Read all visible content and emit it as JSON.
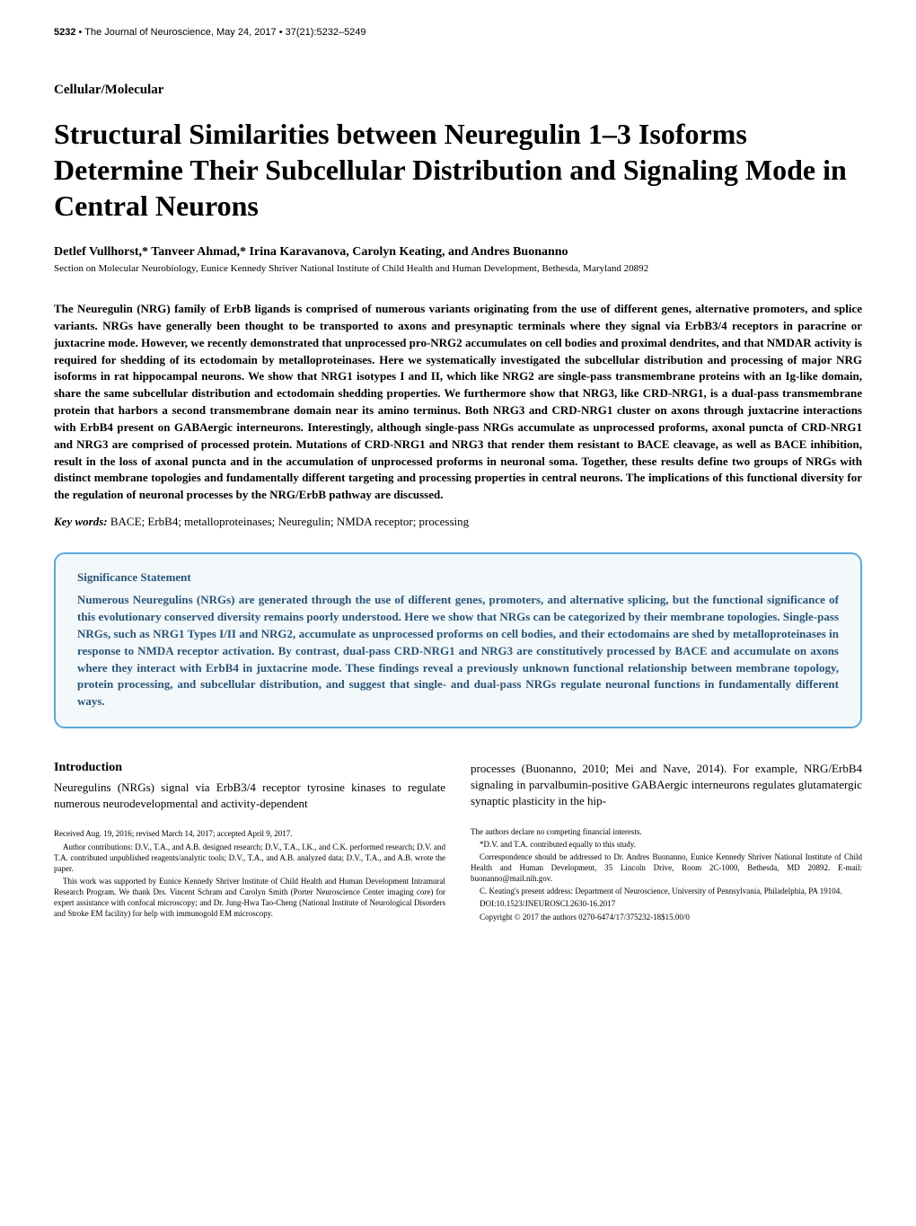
{
  "header": {
    "page_number": "5232",
    "journal_info": "The Journal of Neuroscience, May 24, 2017 • 37(21):5232–5249"
  },
  "section_label": "Cellular/Molecular",
  "title": "Structural Similarities between Neuregulin 1–3 Isoforms Determine Their Subcellular Distribution and Signaling Mode in Central Neurons",
  "authors": "Detlef Vullhorst,* Tanveer Ahmad,* Irina Karavanova, Carolyn Keating, and Andres Buonanno",
  "affiliation": "Section on Molecular Neurobiology, Eunice Kennedy Shriver National Institute of Child Health and Human Development, Bethesda, Maryland 20892",
  "abstract": "The Neuregulin (NRG) family of ErbB ligands is comprised of numerous variants originating from the use of different genes, alternative promoters, and splice variants. NRGs have generally been thought to be transported to axons and presynaptic terminals where they signal via ErbB3/4 receptors in paracrine or juxtacrine mode. However, we recently demonstrated that unprocessed pro-NRG2 accumulates on cell bodies and proximal dendrites, and that NMDAR activity is required for shedding of its ectodomain by metalloproteinases. Here we systematically investigated the subcellular distribution and processing of major NRG isoforms in rat hippocampal neurons. We show that NRG1 isotypes I and II, which like NRG2 are single-pass transmembrane proteins with an Ig-like domain, share the same subcellular distribution and ectodomain shedding properties. We furthermore show that NRG3, like CRD-NRG1, is a dual-pass transmembrane protein that harbors a second transmembrane domain near its amino terminus. Both NRG3 and CRD-NRG1 cluster on axons through juxtacrine interactions with ErbB4 present on GABAergic interneurons. Interestingly, although single-pass NRGs accumulate as unprocessed proforms, axonal puncta of CRD-NRG1 and NRG3 are comprised of processed protein. Mutations of CRD-NRG1 and NRG3 that render them resistant to BACE cleavage, as well as BACE inhibition, result in the loss of axonal puncta and in the accumulation of unprocessed proforms in neuronal soma. Together, these results define two groups of NRGs with distinct membrane topologies and fundamentally different targeting and processing properties in central neurons. The implications of this functional diversity for the regulation of neuronal processes by the NRG/ErbB pathway are discussed.",
  "keywords": {
    "label": "Key words:",
    "text": " BACE; ErbB4; metalloproteinases; Neuregulin; NMDA receptor; processing"
  },
  "significance": {
    "heading": "Significance Statement",
    "text": "Numerous Neuregulins (NRGs) are generated through the use of different genes, promoters, and alternative splicing, but the functional significance of this evolutionary conserved diversity remains poorly understood. Here we show that NRGs can be categorized by their membrane topologies. Single-pass NRGs, such as NRG1 Types I/II and NRG2, accumulate as unprocessed proforms on cell bodies, and their ectodomains are shed by metalloproteinases in response to NMDA receptor activation. By contrast, dual-pass CRD-NRG1 and NRG3 are constitutively processed by BACE and accumulate on axons where they interact with ErbB4 in juxtacrine mode. These findings reveal a previously unknown functional relationship between membrane topology, protein processing, and subcellular distribution, and suggest that single- and dual-pass NRGs regulate neuronal functions in fundamentally different ways."
  },
  "introduction": {
    "heading": "Introduction",
    "left": "Neuregulins (NRGs) signal via ErbB3/4 receptor tyrosine kinases to regulate numerous neurodevelopmental and activity-dependent",
    "right": "processes (Buonanno, 2010; Mei and Nave, 2014). For example, NRG/ErbB4 signaling in parvalbumin-positive GABAergic interneurons regulates glutamatergic synaptic plasticity in the hip-"
  },
  "footnotes": {
    "left": {
      "received": "Received Aug. 19, 2016; revised March 14, 2017; accepted April 9, 2017.",
      "contributions": "Author contributions: D.V., T.A., and A.B. designed research; D.V., T.A., I.K., and C.K. performed research; D.V. and T.A. contributed unpublished reagents/analytic tools; D.V., T.A., and A.B. analyzed data; D.V., T.A., and A.B. wrote the paper.",
      "support": "This work was supported by Eunice Kennedy Shriver Institute of Child Health and Human Development Intramural Research Program. We thank Drs. Vincent Schram and Carolyn Smith (Porter Neuroscience Center imaging core) for expert assistance with confocal microscopy; and Dr. Jung-Hwa Tao-Cheng (National Institute of Neurological Disorders and Stroke EM facility) for help with immunogold EM microscopy."
    },
    "right": {
      "competing": "The authors declare no competing financial interests.",
      "equal": "*D.V. and T.A. contributed equally to this study.",
      "correspondence": "Correspondence should be addressed to Dr. Andres Buonanno, Eunice Kennedy Shriver National Institute of Child Health and Human Development, 35 Lincoln Drive, Room 2C-1000, Bethesda, MD 20892. E-mail: buonanno@mail.nih.gov.",
      "present": "C. Keating's present address: Department of Neuroscience, University of Pennsylvania, Philadelphia, PA 19104.",
      "doi": "DOI:10.1523/JNEUROSCI.2630-16.2017",
      "copyright": "Copyright © 2017 the authors    0270-6474/17/375232-18$15.00/0"
    }
  }
}
